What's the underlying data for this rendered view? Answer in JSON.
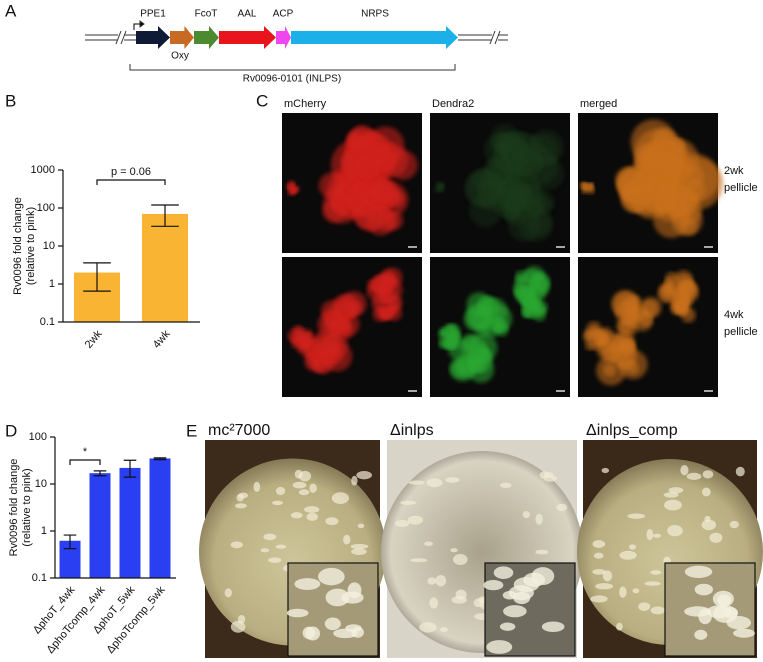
{
  "panels": [
    "A",
    "B",
    "C",
    "D",
    "E"
  ],
  "gene_map": {
    "genes": [
      {
        "name": "PPE1",
        "color": "#0e1a36",
        "label_color": "#000000"
      },
      {
        "name": "Oxy",
        "color": "#c86a24",
        "label_color": "#c0601a"
      },
      {
        "name": "FcoT",
        "color": "#4c8a30",
        "label_color": "#3f7d2a"
      },
      {
        "name": "AAL",
        "color": "#e8161c",
        "label_color": "#e8161c"
      },
      {
        "name": "ACP",
        "color": "#f046f0",
        "label_color": "#e83ee8"
      },
      {
        "name": "NRPS",
        "color": "#1cb0e8",
        "label_color": "#1aa8e0"
      }
    ],
    "locus_label": "Rv0096-0101 (INLPS)"
  },
  "chart_data": [
    {
      "type": "bar",
      "ylabel": [
        "Rv0096 fold change",
        "(relative to pink)"
      ],
      "categories": [
        "2wk",
        "4wk"
      ],
      "values": [
        2.0,
        70
      ],
      "err_low": [
        0.65,
        33
      ],
      "err_high": [
        3.6,
        120
      ],
      "color": "#f8b432",
      "ylim": [
        0.1,
        1000
      ],
      "yticks": [
        0.1,
        1,
        10,
        100,
        1000
      ],
      "log_scale": true,
      "annotation": "p = 0.06"
    },
    {
      "type": "bar",
      "ylabel": [
        "Rv0096 fold change",
        "(relative to pink)"
      ],
      "categories": [
        "ΔphoT_4wk",
        "ΔphoTcomp_4wk",
        "ΔphoT_5wk",
        "ΔphoTcomp_5wk"
      ],
      "values": [
        0.62,
        17,
        22,
        35
      ],
      "err_low": [
        0.42,
        15,
        14,
        33
      ],
      "err_high": [
        0.82,
        19,
        32,
        36
      ],
      "color": "#2a3ff2",
      "ylim": [
        0.1,
        100
      ],
      "yticks": [
        0.1,
        1,
        10,
        100
      ],
      "log_scale": true,
      "annotation": "*"
    }
  ],
  "microscopy": {
    "channels": [
      "mCherry",
      "Dendra2",
      "merged"
    ],
    "rows": [
      [
        "2wk",
        "pellicle"
      ],
      [
        "4wk",
        "pellicle"
      ]
    ]
  },
  "pellicles": {
    "strains": [
      "mc²7000",
      "Δinlps",
      "Δinlps_comp"
    ]
  }
}
